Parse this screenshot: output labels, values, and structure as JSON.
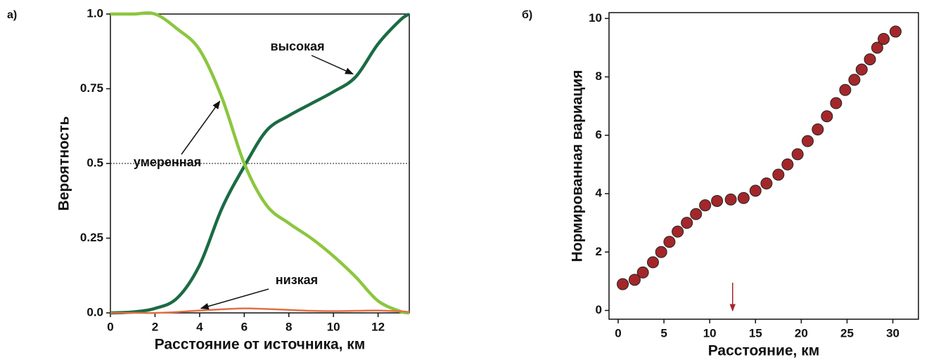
{
  "chart_data": [
    {
      "type": "line",
      "panel_label": "а)",
      "x_label": "Расстояние от источника, км",
      "y_label": "Вероятность",
      "x": [
        0,
        1,
        2,
        3,
        4,
        5,
        6,
        7,
        8,
        9,
        10,
        11,
        12,
        13,
        13.4
      ],
      "series": [
        {
          "name": "высокая",
          "color": "#1b6b45",
          "values": [
            0,
            0.003,
            0.015,
            0.05,
            0.16,
            0.35,
            0.49,
            0.61,
            0.66,
            0.7,
            0.74,
            0.79,
            0.9,
            0.98,
            1.0
          ]
        },
        {
          "name": "умеренная",
          "color": "#8cc63f",
          "values": [
            1.0,
            1.0,
            1.0,
            0.95,
            0.88,
            0.72,
            0.5,
            0.36,
            0.3,
            0.25,
            0.19,
            0.12,
            0.04,
            0.005,
            0
          ]
        },
        {
          "name": "низкая",
          "color": "#e07044",
          "values": [
            0,
            0,
            0,
            0.003,
            0.008,
            0.012,
            0.015,
            0.013,
            0.01,
            0.007,
            0.006,
            0.007,
            0.008,
            0.005,
            0.003
          ]
        }
      ],
      "xlim": [
        0,
        13.4
      ],
      "ylim": [
        0,
        1.0
      ],
      "xticks": [
        0,
        2,
        4,
        6,
        8,
        10,
        12
      ],
      "yticks": [
        {
          "value": 0,
          "label": "0.0"
        },
        0.25,
        0.5,
        0.75,
        {
          "value": 1,
          "label": "1.0"
        }
      ],
      "reference_line": 0.5
    },
    {
      "type": "scatter",
      "panel_label": "б)",
      "x_label": "Расстояние, км",
      "y_label": "Нормированная вариация",
      "x": [
        0.5,
        1.8,
        2.7,
        3.8,
        4.7,
        5.6,
        6.5,
        7.5,
        8.5,
        9.5,
        10.8,
        12.3,
        13.7,
        15,
        16.2,
        17.5,
        18.5,
        19.6,
        20.7,
        21.8,
        22.8,
        23.8,
        24.8,
        25.8,
        26.6,
        27.5,
        28.3,
        29,
        30.3
      ],
      "values": [
        0.9,
        1.05,
        1.3,
        1.65,
        2.0,
        2.35,
        2.7,
        3.0,
        3.3,
        3.6,
        3.75,
        3.8,
        3.85,
        4.1,
        4.35,
        4.65,
        5.0,
        5.35,
        5.8,
        6.2,
        6.65,
        7.1,
        7.55,
        7.9,
        8.25,
        8.6,
        9.0,
        9.3,
        9.55
      ],
      "color": "#a3272a",
      "marker_x": 12.5,
      "xlim": [
        -1,
        32.8
      ],
      "ylim": [
        -0.3,
        10.2
      ],
      "xticks": [
        0,
        5,
        10,
        15,
        20,
        25,
        30
      ],
      "yticks": [
        0,
        2,
        4,
        6,
        8,
        10
      ]
    }
  ]
}
